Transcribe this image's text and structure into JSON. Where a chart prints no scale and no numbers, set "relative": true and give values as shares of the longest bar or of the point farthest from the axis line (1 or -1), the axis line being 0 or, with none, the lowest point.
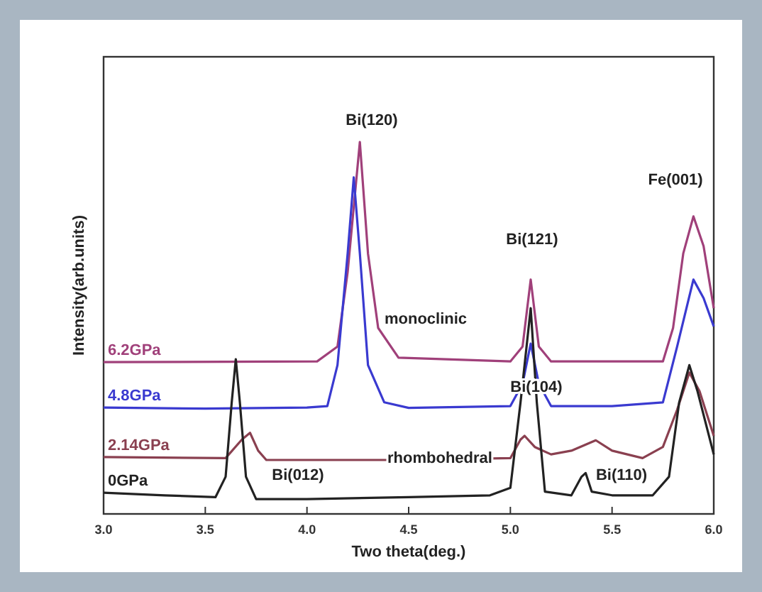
{
  "chart_data": {
    "type": "line",
    "relative": true,
    "xlabel": "Two theta(deg.)",
    "ylabel": "Intensity(arb.units)",
    "xlim": [
      3.0,
      6.0
    ],
    "xticks": [
      {
        "value": 3,
        "label": "3.0"
      },
      {
        "value": 3.5,
        "label": "3.5"
      },
      {
        "value": 4,
        "label": "4.0"
      },
      {
        "value": 4.5,
        "label": "4.5"
      },
      {
        "value": 5,
        "label": "5.0"
      },
      {
        "value": 5.5,
        "label": "5.5"
      },
      {
        "value": 6,
        "label": "6.0"
      }
    ],
    "tick_labels": "x",
    "grid": false,
    "legend": false,
    "marker": "none",
    "line_style": "solid",
    "series": [
      {
        "name": "6.2GPa",
        "color": "#a0407a",
        "x": [
          3.0,
          4.05,
          4.15,
          4.2,
          4.26,
          4.3,
          4.35,
          4.45,
          5.0,
          5.06,
          5.1,
          5.14,
          5.2,
          5.75,
          5.8,
          5.85,
          5.9,
          5.95,
          6.0
        ],
        "values": [
          0.408,
          0.41,
          0.45,
          0.65,
          1,
          0.7,
          0.5,
          0.42,
          0.41,
          0.45,
          0.63,
          0.45,
          0.41,
          0.41,
          0.5,
          0.7,
          0.8,
          0.72,
          0.553
        ]
      },
      {
        "name": "4.8GPa",
        "color": "#3a3ad0",
        "x": [
          3.0,
          3.5,
          4.0,
          4.1,
          4.15,
          4.2,
          4.23,
          4.26,
          4.3,
          4.38,
          4.5,
          5.0,
          5.06,
          5.1,
          5.14,
          5.2,
          5.5,
          5.75,
          5.82,
          5.9,
          5.95,
          6.0
        ],
        "values": [
          0.286,
          0.283,
          0.286,
          0.29,
          0.4,
          0.7,
          0.905,
          0.7,
          0.4,
          0.3,
          0.285,
          0.29,
          0.35,
          0.458,
          0.35,
          0.29,
          0.29,
          0.3,
          0.45,
          0.63,
          0.58,
          0.504
        ]
      },
      {
        "name": "2.14GPa",
        "color": "#8a4050",
        "x": [
          3.0,
          3.6,
          3.68,
          3.72,
          3.76,
          3.8,
          4.5,
          5.0,
          5.05,
          5.07,
          5.12,
          5.2,
          5.3,
          5.42,
          5.5,
          5.65,
          5.75,
          5.82,
          5.88,
          5.93,
          6.0
        ],
        "values": [
          0.153,
          0.15,
          0.2,
          0.218,
          0.17,
          0.145,
          0.145,
          0.15,
          0.2,
          0.21,
          0.18,
          0.16,
          0.17,
          0.198,
          0.17,
          0.15,
          0.18,
          0.28,
          0.38,
          0.33,
          0.21
        ]
      },
      {
        "name": "0GPa",
        "color": "#222222",
        "x": [
          3.0,
          3.3,
          3.55,
          3.6,
          3.63,
          3.65,
          3.67,
          3.7,
          3.75,
          4.0,
          4.5,
          4.9,
          5.0,
          5.05,
          5.1,
          5.13,
          5.17,
          5.3,
          5.35,
          5.37,
          5.4,
          5.5,
          5.7,
          5.78,
          5.83,
          5.88,
          5.92,
          6.0
        ],
        "values": [
          0.057,
          0.05,
          0.045,
          0.1,
          0.3,
          0.416,
          0.3,
          0.1,
          0.04,
          0.04,
          0.045,
          0.05,
          0.07,
          0.3,
          0.553,
          0.3,
          0.06,
          0.05,
          0.1,
          0.11,
          0.06,
          0.05,
          0.05,
          0.1,
          0.3,
          0.4,
          0.33,
          0.16
        ]
      }
    ],
    "annotations": [
      "Bi(120)",
      "Bi(121)",
      "Fe(001)",
      "Bi(104)",
      "Bi(012)",
      "Bi(110)",
      "monoclinic",
      "rhombohedral"
    ]
  }
}
